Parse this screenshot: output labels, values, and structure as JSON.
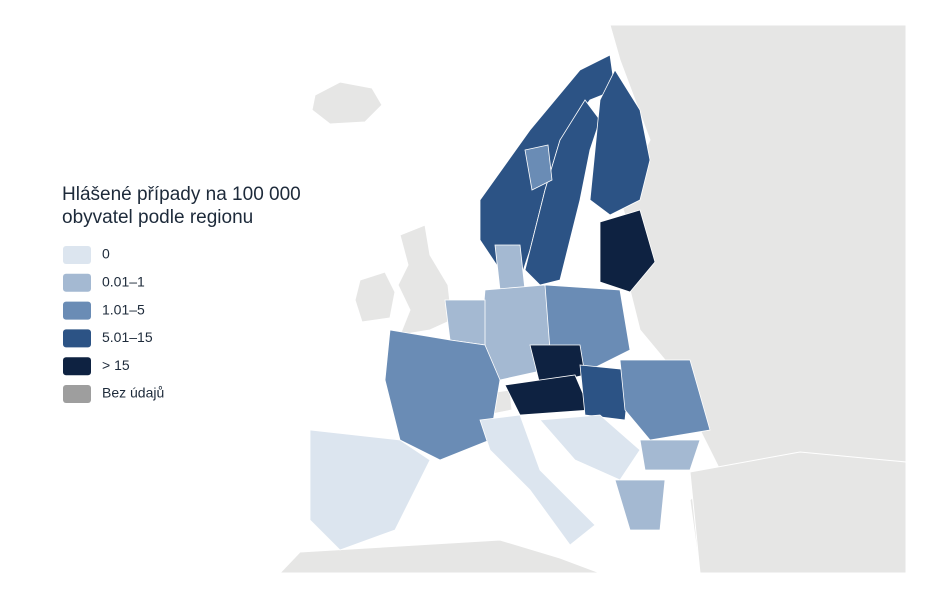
{
  "legend": {
    "title_lines": [
      "Hlášené případy na 100 000",
      "obyvatel podle regionu"
    ],
    "items": [
      {
        "label": "0",
        "color": "#dce5ef"
      },
      {
        "label": "0.01–1",
        "color": "#a4b9d2"
      },
      {
        "label": "1.01–5",
        "color": "#6a8cb5"
      },
      {
        "label": "5.01–15",
        "color": "#2c5385"
      },
      {
        "label": "> 15",
        "color": "#0e2241"
      },
      {
        "label": "Bez údajů",
        "color": "#9e9e9e"
      }
    ]
  }
}
